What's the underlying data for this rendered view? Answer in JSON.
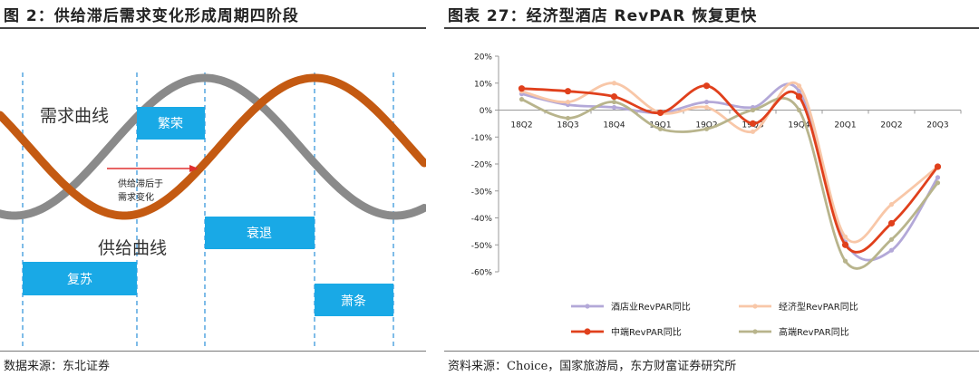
{
  "left": {
    "title": "图 2：供给滞后需求变化形成周期四阶段",
    "demand_label": "需求曲线",
    "supply_label": "供给曲线",
    "lag_note_line1": "供给滞后于",
    "lag_note_line2": "需求变化",
    "phases": [
      {
        "label": "复苏"
      },
      {
        "label": "繁荣"
      },
      {
        "label": "衰退"
      },
      {
        "label": "萧条"
      }
    ],
    "source": "数据来源：东北证券",
    "colors": {
      "demand": "#8a8a8a",
      "supply": "#c45a12",
      "phase_box": "#19a9e6",
      "arrow": "#e03030"
    }
  },
  "right": {
    "title": "图表 27：经济型酒店 RevPAR 恢复更快",
    "source": "资料来源：Choice，国家旅游局，东方财富证券研究所"
  },
  "chart_data": [
    {
      "type": "line",
      "x": [
        "18Q2",
        "18Q3",
        "18Q4",
        "19Q1",
        "19Q2",
        "19Q3",
        "19Q4",
        "20Q1",
        "20Q2",
        "20Q3"
      ],
      "ylim": [
        -60,
        20
      ],
      "yticks": [
        "20%",
        "10%",
        "0%",
        "-10%",
        "-20%",
        "-30%",
        "-40%",
        "-50%",
        "-60%"
      ],
      "grid": false,
      "legend_position": "bottom",
      "series": [
        {
          "name": "酒店业RevPAR同比",
          "color": "#b3a8d8",
          "marker": "none",
          "values": [
            6,
            2,
            1,
            -1,
            3,
            1,
            7,
            -49,
            -52,
            -25
          ]
        },
        {
          "name": "经济型RevPAR同比",
          "color": "#f8c7a8",
          "marker": "none",
          "values": [
            7,
            3,
            10,
            -1,
            1,
            -8,
            9,
            -47,
            -35,
            -21
          ]
        },
        {
          "name": "中端RevPAR同比",
          "color": "#e0401c",
          "marker": "circle",
          "values": [
            8,
            7,
            5,
            -1,
            9,
            -5,
            5,
            -50,
            -42,
            -21
          ]
        },
        {
          "name": "高端RevPAR同比",
          "color": "#b8b48c",
          "marker": "none",
          "values": [
            4,
            -3,
            3,
            -7,
            -7,
            0,
            0,
            -56,
            -48,
            -27
          ]
        }
      ]
    }
  ]
}
